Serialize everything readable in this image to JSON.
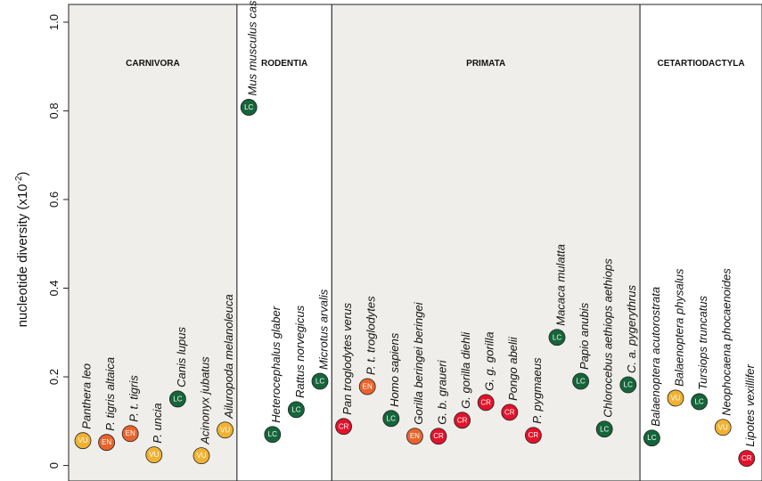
{
  "chart_data": {
    "type": "dot",
    "ylabel": {
      "text": "nucleotide diversity (x10",
      "exponent": "-2",
      "suffix": ")"
    },
    "ylim": [
      -0.035,
      1.04
    ],
    "yticks": [
      0,
      0.2,
      0.4,
      0.6,
      0.8,
      {
        "value": 1.0,
        "label": "1.0"
      }
    ],
    "status_colors": {
      "LC": "#14663a",
      "VU": "#f2b231",
      "EN": "#e8642c",
      "CR": "#e3122b"
    },
    "groups": [
      {
        "name": "CARNIVORA",
        "shaded": true,
        "categories": [
          "Panthera leo",
          "P. tigris altaica",
          "P. t. tigris",
          "P. uncia",
          "Canis lupus",
          "Acinonyx jubatus",
          "Ailuropoda melanoleuca"
        ],
        "values": [
          0.056,
          0.052,
          0.072,
          0.024,
          0.15,
          0.022,
          0.08
        ],
        "status": [
          "VU",
          "EN",
          "EN",
          "VU",
          "LC",
          "VU",
          "VU"
        ]
      },
      {
        "name": "RODENTIA",
        "shaded": false,
        "categories": [
          "Mus musculus castaneus",
          "Heterocephalus glaber",
          "Rattus norvegicus",
          "Microtus arvalis"
        ],
        "values": [
          0.808,
          0.07,
          0.126,
          0.19
        ],
        "status": [
          "LC",
          "LC",
          "LC",
          "LC"
        ]
      },
      {
        "name": "PRIMATA",
        "shaded": true,
        "categories": [
          "Pan troglodytes verus",
          "P. t. troglodytes",
          "Homo sapiens",
          "Gorilla beringei beringei",
          "G. b. graueri",
          "G. gorilla diehli",
          "G. g. gorilla",
          "Pongo abelii",
          "P. pygmaeus",
          "Macaca mulatta",
          "Papio anubis",
          "Chlorocebus aethiops aethiops",
          "C. a. pygerythrus"
        ],
        "values": [
          0.088,
          0.178,
          0.106,
          0.066,
          0.066,
          0.102,
          0.142,
          0.12,
          0.068,
          0.289,
          0.19,
          0.082,
          0.182
        ],
        "status": [
          "CR",
          "EN",
          "LC",
          "EN",
          "CR",
          "CR",
          "CR",
          "CR",
          "CR",
          "LC",
          "LC",
          "LC",
          "LC"
        ]
      },
      {
        "name": "CETARTIODACTYLA",
        "shaded": false,
        "categories": [
          "Balaenoptera acutorostrata",
          "Balaenoptera physalus",
          "Tursiops truncatus",
          "Neophocaena phocaenoides",
          "Lipotes vexillifer"
        ],
        "values": [
          0.062,
          0.152,
          0.144,
          0.086,
          0.016
        ],
        "status": [
          "LC",
          "VU",
          "LC",
          "VU",
          "CR"
        ]
      }
    ]
  }
}
